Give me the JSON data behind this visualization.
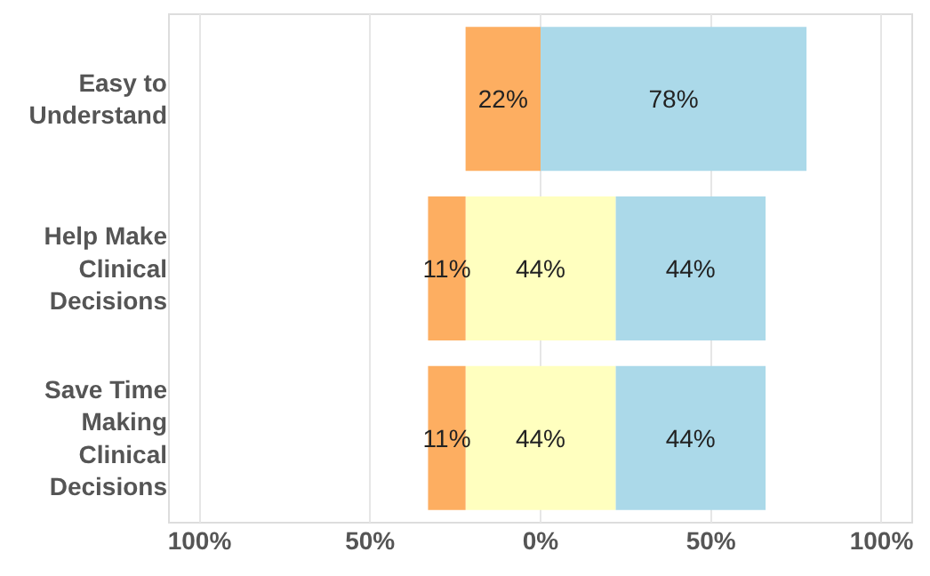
{
  "chart_data": {
    "type": "bar",
    "orientation": "horizontal",
    "categories": [
      "Easy to Understand",
      "Help Make Clinical Decisions",
      "Save Time Making Clinical Decisions"
    ],
    "series": [
      {
        "color": "#fdae61",
        "base": [
          -22,
          -33,
          -33
        ],
        "values": [
          22,
          11,
          11
        ],
        "value_labels": [
          "22%",
          "11%",
          "11%"
        ]
      },
      {
        "color": "#ffffbf",
        "base": [
          null,
          -22,
          -22
        ],
        "values": [
          null,
          44,
          44
        ],
        "value_labels": [
          null,
          "44%",
          "44%"
        ]
      },
      {
        "color": "#abd9e9",
        "base": [
          0,
          22,
          22
        ],
        "values": [
          78,
          44,
          44
        ],
        "value_labels": [
          "78%",
          "44%",
          "44%"
        ]
      }
    ],
    "xlim": [
      -109,
      109
    ],
    "xticks": [
      {
        "value": -100,
        "label": "100%"
      },
      {
        "value": -50,
        "label": "50%"
      },
      {
        "value": 0,
        "label": "0%"
      },
      {
        "value": 50,
        "label": "50%"
      },
      {
        "value": 100,
        "label": "100%"
      }
    ],
    "grid": "x"
  }
}
